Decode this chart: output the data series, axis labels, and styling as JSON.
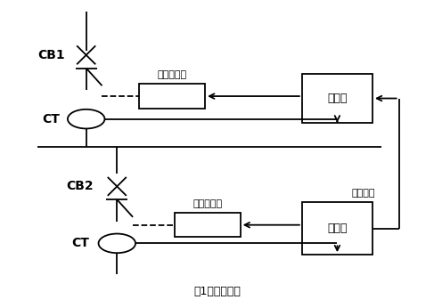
{
  "title": "图1区域选择性",
  "bg_color": "#ffffff",
  "line_color": "#000000",
  "text_color": "#000000",
  "labels": {
    "CB1": "CB1",
    "CB2": "CB2",
    "CT1": "CT",
    "CT2": "CT",
    "box1_label": "磁通转换器",
    "box2_label": "脱扣器",
    "box3_label": "磁通转换器",
    "box4_label": "等待命令",
    "box5_label": "脱扣器",
    "title": "图1区域选择性"
  },
  "fig_width": 4.87,
  "fig_height": 3.46,
  "dpi": 100
}
